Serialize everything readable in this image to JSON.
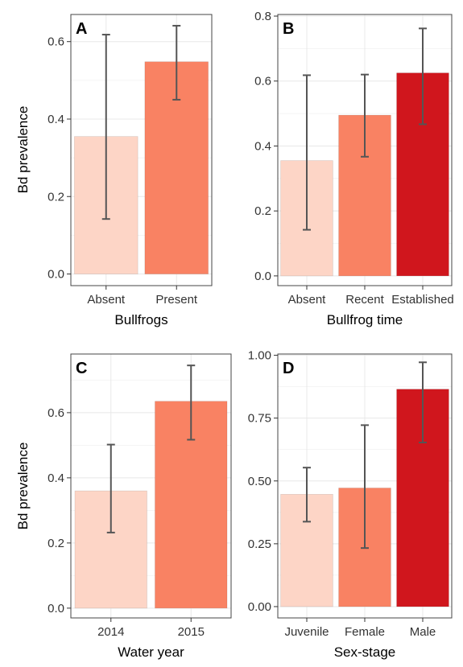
{
  "ylabel": "Bd prevalence",
  "colors": {
    "light": "#fdd5c6",
    "medium": "#f98263",
    "dark": "#d0161d",
    "error_bar": "#555555",
    "grid": "#e8e8e8",
    "panel_border": "#444444"
  },
  "chart_data": [
    {
      "type": "bar",
      "panel": "A",
      "xlabel": "Bullfrogs",
      "ylabel": "Bd prevalence",
      "categories": [
        "Absent",
        "Present"
      ],
      "values": [
        0.355,
        0.548
      ],
      "error_low": [
        0.142,
        0.45
      ],
      "error_high": [
        0.618,
        0.641
      ],
      "bar_colors": [
        "#fdd5c6",
        "#f98263"
      ],
      "ylim": [
        -0.03,
        0.67
      ],
      "yticks": [
        0.0,
        0.2,
        0.4,
        0.6
      ],
      "ytick_labels": [
        "0.0",
        "0.2",
        "0.4",
        "0.6"
      ],
      "grid": true
    },
    {
      "type": "bar",
      "panel": "B",
      "xlabel": "Bullfrog time",
      "ylabel": "",
      "categories": [
        "Absent",
        "Recent",
        "Established"
      ],
      "values": [
        0.355,
        0.495,
        0.625
      ],
      "error_low": [
        0.142,
        0.367,
        0.467
      ],
      "error_high": [
        0.618,
        0.62,
        0.762
      ],
      "bar_colors": [
        "#fdd5c6",
        "#f98263",
        "#d0161d"
      ],
      "ylim": [
        -0.03,
        0.805
      ],
      "yticks": [
        0.0,
        0.2,
        0.4,
        0.6,
        0.8
      ],
      "ytick_labels": [
        "0.0",
        "0.2",
        "0.4",
        "0.6",
        "0.8"
      ],
      "grid": true
    },
    {
      "type": "bar",
      "panel": "C",
      "xlabel": "Water year",
      "ylabel": "Bd prevalence",
      "categories": [
        "2014",
        "2015"
      ],
      "values": [
        0.36,
        0.635
      ],
      "error_low": [
        0.232,
        0.517
      ],
      "error_high": [
        0.502,
        0.745
      ],
      "bar_colors": [
        "#fdd5c6",
        "#f98263"
      ],
      "ylim": [
        -0.03,
        0.78
      ],
      "yticks": [
        0.0,
        0.2,
        0.4,
        0.6
      ],
      "ytick_labels": [
        "0.0",
        "0.2",
        "0.4",
        "0.6"
      ],
      "grid": true
    },
    {
      "type": "bar",
      "panel": "D",
      "xlabel": "Sex-stage",
      "ylabel": "",
      "categories": [
        "Juvenile",
        "Female",
        "Male"
      ],
      "values": [
        0.447,
        0.472,
        0.865
      ],
      "error_low": [
        0.338,
        0.233,
        0.653
      ],
      "error_high": [
        0.553,
        0.722,
        0.972
      ],
      "bar_colors": [
        "#fdd5c6",
        "#f98263",
        "#d0161d"
      ],
      "ylim": [
        -0.045,
        1.005
      ],
      "yticks": [
        0.0,
        0.25,
        0.5,
        0.75,
        1.0
      ],
      "ytick_labels": [
        "0.00",
        "0.25",
        "0.50",
        "0.75",
        "1.00"
      ],
      "grid": true
    }
  ]
}
